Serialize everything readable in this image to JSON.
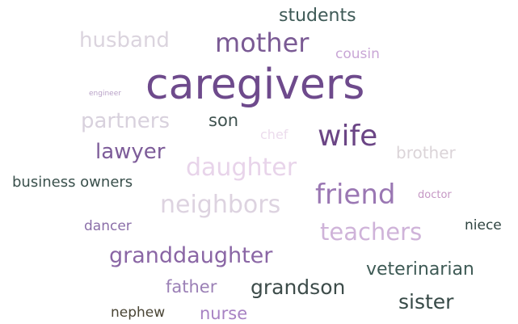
{
  "words": [
    "students",
    "husband",
    "mother",
    "cousin",
    "engineer",
    "caregivers",
    "partners",
    "son",
    "chef",
    "wife",
    "brother",
    "lawyer",
    "daughter",
    "business owners",
    "friend",
    "doctor",
    "neighbors",
    "dancer",
    "niece",
    "teachers",
    "granddaughter",
    "veterinarian",
    "father",
    "grandson",
    "sister",
    "nephew",
    "nurse"
  ]
}
